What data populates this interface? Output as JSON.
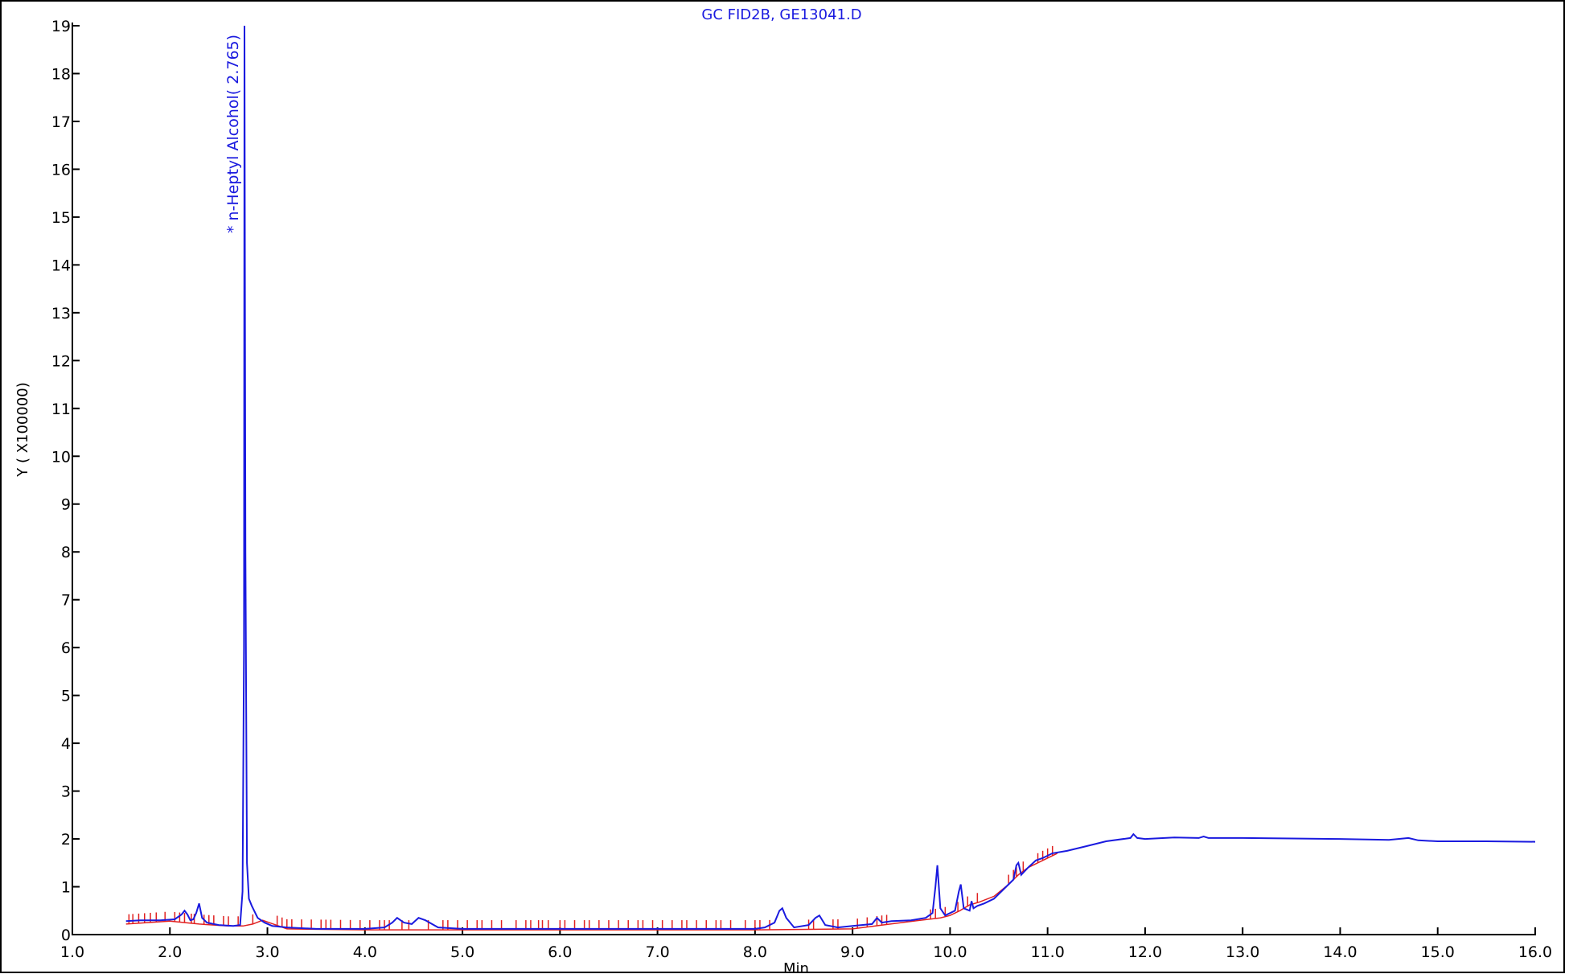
{
  "chart_data": {
    "type": "line",
    "title": "GC FID2B, GE13041.D",
    "xlabel": "Min",
    "ylabel": "Y ( X100000)",
    "xlim": [
      1.0,
      16.0
    ],
    "ylim": [
      0,
      19
    ],
    "x_ticks": [
      "1.0",
      "2.0",
      "3.0",
      "4.0",
      "5.0",
      "6.0",
      "7.0",
      "8.0",
      "9.0",
      "10.0",
      "11.0",
      "12.0",
      "13.0",
      "14.0",
      "15.0",
      "16.0"
    ],
    "y_ticks": [
      "0",
      "1",
      "2",
      "3",
      "4",
      "5",
      "6",
      "7",
      "8",
      "9",
      "10",
      "11",
      "12",
      "13",
      "14",
      "15",
      "16",
      "17",
      "18",
      "19"
    ],
    "grid": false,
    "colors": {
      "signal": "#1a1adf",
      "baseline": "#e02020",
      "integration_marks": "#e02020",
      "axes": "#000000"
    },
    "peak_annotations": [
      {
        "text": "* n-Heptyl Alcohol( 2.765)",
        "x": 2.765
      }
    ],
    "series": [
      {
        "role": "signal",
        "x": [
          1.55,
          1.7,
          1.9,
          2.05,
          2.12,
          2.15,
          2.18,
          2.21,
          2.24,
          2.27,
          2.3,
          2.33,
          2.38,
          2.5,
          2.65,
          2.72,
          2.745,
          2.76,
          2.765,
          2.775,
          2.79,
          2.81,
          2.84,
          2.9,
          2.97,
          3.05,
          3.2,
          3.5,
          4.0,
          4.2,
          4.28,
          4.33,
          4.4,
          4.48,
          4.55,
          4.62,
          4.75,
          5.0,
          5.5,
          6.0,
          6.5,
          7.0,
          7.5,
          8.0,
          8.1,
          8.2,
          8.25,
          8.28,
          8.32,
          8.4,
          8.55,
          8.62,
          8.66,
          8.72,
          8.85,
          9.0,
          9.2,
          9.25,
          9.3,
          9.4,
          9.6,
          9.75,
          9.82,
          9.85,
          9.87,
          9.9,
          9.95,
          10.05,
          10.09,
          10.11,
          10.14,
          10.2,
          10.22,
          10.24,
          10.28,
          10.35,
          10.45,
          10.55,
          10.65,
          10.68,
          10.7,
          10.73,
          10.8,
          10.88,
          10.95,
          11.0,
          11.05,
          11.2,
          11.4,
          11.6,
          11.85,
          11.88,
          11.92,
          12.0,
          12.3,
          12.55,
          12.6,
          12.65,
          12.8,
          13.0,
          13.5,
          14.0,
          14.5,
          14.7,
          14.8,
          15.0,
          15.5,
          16.0
        ],
        "y": [
          0.28,
          0.3,
          0.3,
          0.32,
          0.42,
          0.5,
          0.42,
          0.3,
          0.32,
          0.45,
          0.65,
          0.35,
          0.25,
          0.2,
          0.18,
          0.2,
          0.9,
          6.0,
          19.0,
          8.0,
          1.5,
          0.75,
          0.6,
          0.35,
          0.25,
          0.18,
          0.15,
          0.12,
          0.12,
          0.15,
          0.25,
          0.35,
          0.25,
          0.22,
          0.35,
          0.3,
          0.15,
          0.12,
          0.12,
          0.12,
          0.12,
          0.12,
          0.12,
          0.12,
          0.15,
          0.25,
          0.5,
          0.55,
          0.35,
          0.15,
          0.2,
          0.35,
          0.4,
          0.2,
          0.15,
          0.18,
          0.22,
          0.35,
          0.25,
          0.28,
          0.3,
          0.35,
          0.45,
          1.0,
          1.45,
          0.55,
          0.4,
          0.5,
          0.9,
          1.05,
          0.55,
          0.5,
          0.7,
          0.55,
          0.6,
          0.65,
          0.75,
          0.95,
          1.15,
          1.45,
          1.5,
          1.25,
          1.4,
          1.55,
          1.6,
          1.65,
          1.7,
          1.75,
          1.85,
          1.95,
          2.02,
          2.1,
          2.02,
          2.0,
          2.03,
          2.02,
          2.05,
          2.02,
          2.02,
          2.02,
          2.01,
          2.0,
          1.98,
          2.02,
          1.97,
          1.95,
          1.95,
          1.94
        ]
      },
      {
        "role": "baseline",
        "x": [
          1.55,
          2.0,
          2.3,
          2.6,
          2.75,
          2.85,
          2.95,
          3.2,
          4.0,
          5.0,
          6.0,
          7.0,
          8.0,
          9.0,
          9.5,
          9.9,
          10.0,
          10.1,
          10.2,
          10.3,
          10.45,
          10.6,
          10.7,
          10.8,
          10.95,
          11.1
        ],
        "y": [
          0.22,
          0.28,
          0.22,
          0.18,
          0.18,
          0.22,
          0.3,
          0.12,
          0.1,
          0.1,
          0.1,
          0.1,
          0.1,
          0.12,
          0.25,
          0.35,
          0.4,
          0.5,
          0.62,
          0.68,
          0.8,
          1.05,
          1.25,
          1.4,
          1.55,
          1.7
        ]
      }
    ],
    "integration_marks_x": [
      1.58,
      1.62,
      1.68,
      1.74,
      1.8,
      1.86,
      1.95,
      2.05,
      2.1,
      2.15,
      2.22,
      2.25,
      2.35,
      2.4,
      2.45,
      2.55,
      2.6,
      2.7,
      2.85,
      3.1,
      3.15,
      3.2,
      3.25,
      3.35,
      3.45,
      3.55,
      3.6,
      3.65,
      3.75,
      3.85,
      3.95,
      4.05,
      4.15,
      4.2,
      4.25,
      4.38,
      4.45,
      4.65,
      4.8,
      4.85,
      4.95,
      5.05,
      5.15,
      5.2,
      5.3,
      5.4,
      5.55,
      5.65,
      5.7,
      5.78,
      5.82,
      5.88,
      6.0,
      6.05,
      6.15,
      6.25,
      6.3,
      6.4,
      6.5,
      6.6,
      6.7,
      6.8,
      6.85,
      6.95,
      7.05,
      7.15,
      7.25,
      7.3,
      7.4,
      7.5,
      7.6,
      7.65,
      7.75,
      7.9,
      8.0,
      8.05,
      8.15,
      8.55,
      8.6,
      8.8,
      8.85,
      9.05,
      9.15,
      9.25,
      9.3,
      9.35,
      9.8,
      9.85,
      9.95,
      10.08,
      10.18,
      10.28,
      10.6,
      10.65,
      10.68,
      10.75,
      10.9,
      10.95,
      11.0,
      11.05
    ]
  }
}
